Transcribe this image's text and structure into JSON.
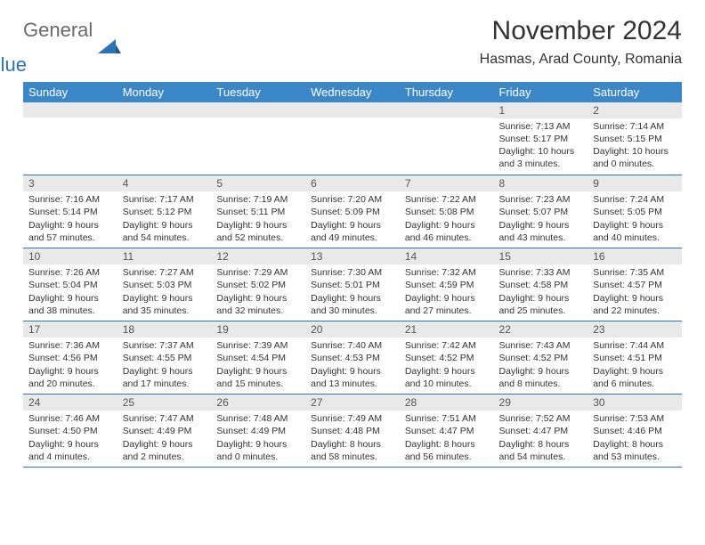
{
  "logo": {
    "word1": "General",
    "word2": "Blue"
  },
  "title": "November 2024",
  "location": "Hasmas, Arad County, Romania",
  "colors": {
    "header_bg": "#3c87c7",
    "header_text": "#ffffff",
    "daynum_bg": "#e9e9e9",
    "border": "#2e74b5",
    "logo_gray": "#6a6a6a",
    "logo_blue": "#2e74b5"
  },
  "columns": [
    "Sunday",
    "Monday",
    "Tuesday",
    "Wednesday",
    "Thursday",
    "Friday",
    "Saturday"
  ],
  "weeks": [
    [
      {
        "n": "",
        "sr": "",
        "ss": "",
        "dl": ""
      },
      {
        "n": "",
        "sr": "",
        "ss": "",
        "dl": ""
      },
      {
        "n": "",
        "sr": "",
        "ss": "",
        "dl": ""
      },
      {
        "n": "",
        "sr": "",
        "ss": "",
        "dl": ""
      },
      {
        "n": "",
        "sr": "",
        "ss": "",
        "dl": ""
      },
      {
        "n": "1",
        "sr": "Sunrise: 7:13 AM",
        "ss": "Sunset: 5:17 PM",
        "dl": "Daylight: 10 hours and 3 minutes."
      },
      {
        "n": "2",
        "sr": "Sunrise: 7:14 AM",
        "ss": "Sunset: 5:15 PM",
        "dl": "Daylight: 10 hours and 0 minutes."
      }
    ],
    [
      {
        "n": "3",
        "sr": "Sunrise: 7:16 AM",
        "ss": "Sunset: 5:14 PM",
        "dl": "Daylight: 9 hours and 57 minutes."
      },
      {
        "n": "4",
        "sr": "Sunrise: 7:17 AM",
        "ss": "Sunset: 5:12 PM",
        "dl": "Daylight: 9 hours and 54 minutes."
      },
      {
        "n": "5",
        "sr": "Sunrise: 7:19 AM",
        "ss": "Sunset: 5:11 PM",
        "dl": "Daylight: 9 hours and 52 minutes."
      },
      {
        "n": "6",
        "sr": "Sunrise: 7:20 AM",
        "ss": "Sunset: 5:09 PM",
        "dl": "Daylight: 9 hours and 49 minutes."
      },
      {
        "n": "7",
        "sr": "Sunrise: 7:22 AM",
        "ss": "Sunset: 5:08 PM",
        "dl": "Daylight: 9 hours and 46 minutes."
      },
      {
        "n": "8",
        "sr": "Sunrise: 7:23 AM",
        "ss": "Sunset: 5:07 PM",
        "dl": "Daylight: 9 hours and 43 minutes."
      },
      {
        "n": "9",
        "sr": "Sunrise: 7:24 AM",
        "ss": "Sunset: 5:05 PM",
        "dl": "Daylight: 9 hours and 40 minutes."
      }
    ],
    [
      {
        "n": "10",
        "sr": "Sunrise: 7:26 AM",
        "ss": "Sunset: 5:04 PM",
        "dl": "Daylight: 9 hours and 38 minutes."
      },
      {
        "n": "11",
        "sr": "Sunrise: 7:27 AM",
        "ss": "Sunset: 5:03 PM",
        "dl": "Daylight: 9 hours and 35 minutes."
      },
      {
        "n": "12",
        "sr": "Sunrise: 7:29 AM",
        "ss": "Sunset: 5:02 PM",
        "dl": "Daylight: 9 hours and 32 minutes."
      },
      {
        "n": "13",
        "sr": "Sunrise: 7:30 AM",
        "ss": "Sunset: 5:01 PM",
        "dl": "Daylight: 9 hours and 30 minutes."
      },
      {
        "n": "14",
        "sr": "Sunrise: 7:32 AM",
        "ss": "Sunset: 4:59 PM",
        "dl": "Daylight: 9 hours and 27 minutes."
      },
      {
        "n": "15",
        "sr": "Sunrise: 7:33 AM",
        "ss": "Sunset: 4:58 PM",
        "dl": "Daylight: 9 hours and 25 minutes."
      },
      {
        "n": "16",
        "sr": "Sunrise: 7:35 AM",
        "ss": "Sunset: 4:57 PM",
        "dl": "Daylight: 9 hours and 22 minutes."
      }
    ],
    [
      {
        "n": "17",
        "sr": "Sunrise: 7:36 AM",
        "ss": "Sunset: 4:56 PM",
        "dl": "Daylight: 9 hours and 20 minutes."
      },
      {
        "n": "18",
        "sr": "Sunrise: 7:37 AM",
        "ss": "Sunset: 4:55 PM",
        "dl": "Daylight: 9 hours and 17 minutes."
      },
      {
        "n": "19",
        "sr": "Sunrise: 7:39 AM",
        "ss": "Sunset: 4:54 PM",
        "dl": "Daylight: 9 hours and 15 minutes."
      },
      {
        "n": "20",
        "sr": "Sunrise: 7:40 AM",
        "ss": "Sunset: 4:53 PM",
        "dl": "Daylight: 9 hours and 13 minutes."
      },
      {
        "n": "21",
        "sr": "Sunrise: 7:42 AM",
        "ss": "Sunset: 4:52 PM",
        "dl": "Daylight: 9 hours and 10 minutes."
      },
      {
        "n": "22",
        "sr": "Sunrise: 7:43 AM",
        "ss": "Sunset: 4:52 PM",
        "dl": "Daylight: 9 hours and 8 minutes."
      },
      {
        "n": "23",
        "sr": "Sunrise: 7:44 AM",
        "ss": "Sunset: 4:51 PM",
        "dl": "Daylight: 9 hours and 6 minutes."
      }
    ],
    [
      {
        "n": "24",
        "sr": "Sunrise: 7:46 AM",
        "ss": "Sunset: 4:50 PM",
        "dl": "Daylight: 9 hours and 4 minutes."
      },
      {
        "n": "25",
        "sr": "Sunrise: 7:47 AM",
        "ss": "Sunset: 4:49 PM",
        "dl": "Daylight: 9 hours and 2 minutes."
      },
      {
        "n": "26",
        "sr": "Sunrise: 7:48 AM",
        "ss": "Sunset: 4:49 PM",
        "dl": "Daylight: 9 hours and 0 minutes."
      },
      {
        "n": "27",
        "sr": "Sunrise: 7:49 AM",
        "ss": "Sunset: 4:48 PM",
        "dl": "Daylight: 8 hours and 58 minutes."
      },
      {
        "n": "28",
        "sr": "Sunrise: 7:51 AM",
        "ss": "Sunset: 4:47 PM",
        "dl": "Daylight: 8 hours and 56 minutes."
      },
      {
        "n": "29",
        "sr": "Sunrise: 7:52 AM",
        "ss": "Sunset: 4:47 PM",
        "dl": "Daylight: 8 hours and 54 minutes."
      },
      {
        "n": "30",
        "sr": "Sunrise: 7:53 AM",
        "ss": "Sunset: 4:46 PM",
        "dl": "Daylight: 8 hours and 53 minutes."
      }
    ]
  ]
}
